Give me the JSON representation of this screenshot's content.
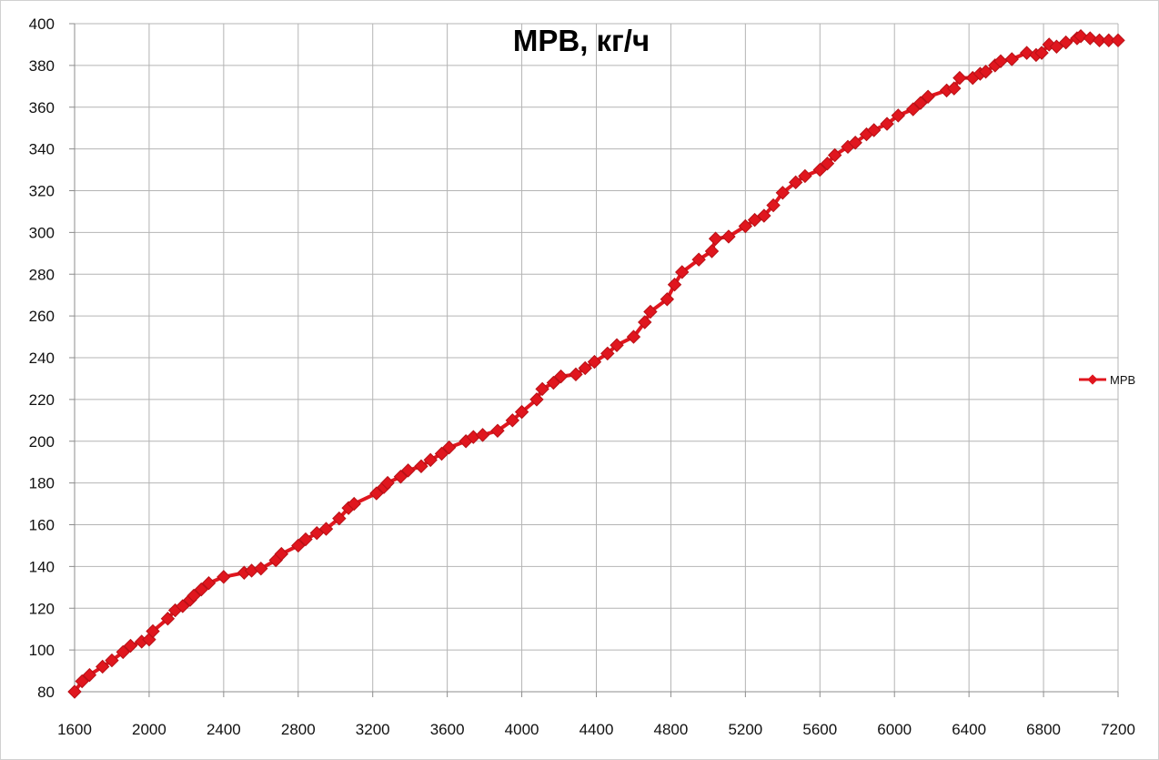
{
  "chart_data": {
    "type": "line",
    "title": "MPB, кг/ч",
    "xlabel": "",
    "ylabel": "",
    "xlim": [
      1600,
      7200
    ],
    "ylim": [
      80,
      400
    ],
    "x_ticks": [
      1600,
      2000,
      2400,
      2800,
      3200,
      3600,
      4000,
      4400,
      4800,
      5200,
      5600,
      6000,
      6400,
      6800,
      7200
    ],
    "y_ticks": [
      80,
      100,
      120,
      140,
      160,
      180,
      200,
      220,
      240,
      260,
      280,
      300,
      320,
      340,
      360,
      380,
      400
    ],
    "grid": true,
    "legend": "right",
    "colors": {
      "series": "#e0161e",
      "marker_edge": "#b81016",
      "grid": "#b4b4b4",
      "axis": "#8c8c8c"
    },
    "series": [
      {
        "name": "MPB",
        "points": [
          [
            1600,
            80
          ],
          [
            1640,
            85
          ],
          [
            1680,
            88
          ],
          [
            1750,
            92
          ],
          [
            1800,
            95
          ],
          [
            1860,
            99
          ],
          [
            1900,
            102
          ],
          [
            1960,
            104
          ],
          [
            2000,
            105
          ],
          [
            2020,
            109
          ],
          [
            2100,
            115
          ],
          [
            2140,
            119
          ],
          [
            2180,
            121
          ],
          [
            2220,
            124
          ],
          [
            2240,
            126
          ],
          [
            2280,
            129
          ],
          [
            2320,
            132
          ],
          [
            2400,
            135
          ],
          [
            2510,
            137
          ],
          [
            2550,
            138
          ],
          [
            2600,
            139
          ],
          [
            2680,
            143
          ],
          [
            2710,
            146
          ],
          [
            2800,
            150
          ],
          [
            2840,
            153
          ],
          [
            2900,
            156
          ],
          [
            2950,
            158
          ],
          [
            3020,
            163
          ],
          [
            3070,
            168
          ],
          [
            3100,
            170
          ],
          [
            3220,
            175
          ],
          [
            3260,
            178
          ],
          [
            3280,
            180
          ],
          [
            3350,
            183
          ],
          [
            3390,
            186
          ],
          [
            3460,
            188
          ],
          [
            3510,
            191
          ],
          [
            3570,
            194
          ],
          [
            3610,
            197
          ],
          [
            3700,
            200
          ],
          [
            3740,
            202
          ],
          [
            3790,
            203
          ],
          [
            3870,
            205
          ],
          [
            3950,
            210
          ],
          [
            4000,
            214
          ],
          [
            4080,
            220
          ],
          [
            4110,
            225
          ],
          [
            4170,
            228
          ],
          [
            4210,
            231
          ],
          [
            4290,
            232
          ],
          [
            4340,
            235
          ],
          [
            4390,
            238
          ],
          [
            4460,
            242
          ],
          [
            4510,
            246
          ],
          [
            4600,
            250
          ],
          [
            4660,
            257
          ],
          [
            4690,
            262
          ],
          [
            4780,
            268
          ],
          [
            4820,
            275
          ],
          [
            4860,
            281
          ],
          [
            4950,
            287
          ],
          [
            5020,
            291
          ],
          [
            5040,
            297
          ],
          [
            5110,
            298
          ],
          [
            5200,
            303
          ],
          [
            5250,
            306
          ],
          [
            5300,
            308
          ],
          [
            5350,
            313
          ],
          [
            5400,
            319
          ],
          [
            5470,
            324
          ],
          [
            5520,
            327
          ],
          [
            5600,
            330
          ],
          [
            5640,
            333
          ],
          [
            5680,
            337
          ],
          [
            5750,
            341
          ],
          [
            5790,
            343
          ],
          [
            5850,
            347
          ],
          [
            5890,
            349
          ],
          [
            5960,
            352
          ],
          [
            6020,
            356
          ],
          [
            6100,
            359
          ],
          [
            6140,
            362
          ],
          [
            6180,
            365
          ],
          [
            6280,
            368
          ],
          [
            6320,
            369
          ],
          [
            6350,
            374
          ],
          [
            6420,
            374
          ],
          [
            6460,
            376
          ],
          [
            6490,
            377
          ],
          [
            6540,
            380
          ],
          [
            6570,
            382
          ],
          [
            6630,
            383
          ],
          [
            6710,
            386
          ],
          [
            6760,
            385
          ],
          [
            6790,
            386
          ],
          [
            6830,
            390
          ],
          [
            6870,
            389
          ],
          [
            6920,
            391
          ],
          [
            6980,
            393
          ],
          [
            7000,
            394
          ],
          [
            7050,
            393
          ],
          [
            7100,
            392
          ],
          [
            7150,
            392
          ],
          [
            7200,
            392
          ]
        ]
      }
    ]
  }
}
